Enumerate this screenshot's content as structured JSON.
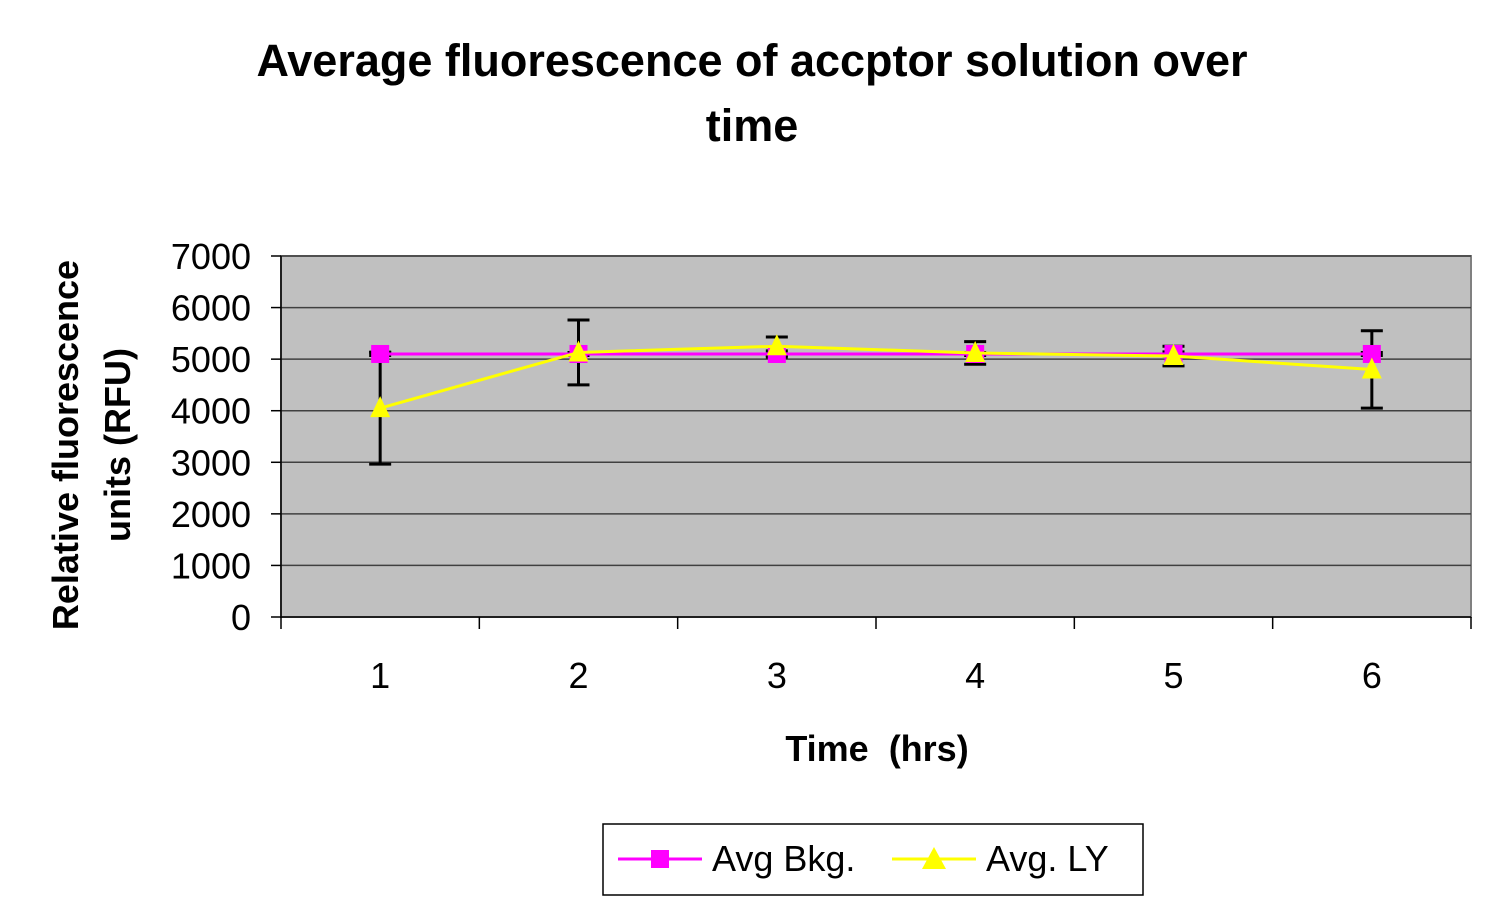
{
  "chart_data": {
    "type": "line",
    "title": "Average fluorescence of accptor solution over time",
    "title_lines": [
      "Average fluorescence of accptor solution over",
      "time"
    ],
    "xlabel": "Time  (hrs)",
    "ylabel": "Relative fluorescence units (RFU)",
    "ylabel_lines": [
      "Relative fluorescence",
      "units (RFU)"
    ],
    "categories": [
      "1",
      "2",
      "3",
      "4",
      "5",
      "6"
    ],
    "ylim": [
      0,
      7000
    ],
    "yticks": [
      "0",
      "1000",
      "2000",
      "3000",
      "4000",
      "5000",
      "6000",
      "7000"
    ],
    "grid": true,
    "plot_background": "#c0c0c0",
    "legend_position": "bottom",
    "series": [
      {
        "name": "Avg Bkg.",
        "color": "#ff00ff",
        "marker": "square",
        "values": [
          5100,
          5100,
          5100,
          5100,
          5100,
          5100
        ],
        "error": [
          30,
          30,
          60,
          30,
          40,
          30
        ]
      },
      {
        "name": "Avg. LY",
        "color": "#ffff00",
        "marker": "triangle",
        "values": [
          4050,
          5130,
          5250,
          5120,
          5060,
          4800
        ],
        "error": [
          1085,
          630,
          180,
          220,
          190,
          750
        ]
      }
    ]
  }
}
